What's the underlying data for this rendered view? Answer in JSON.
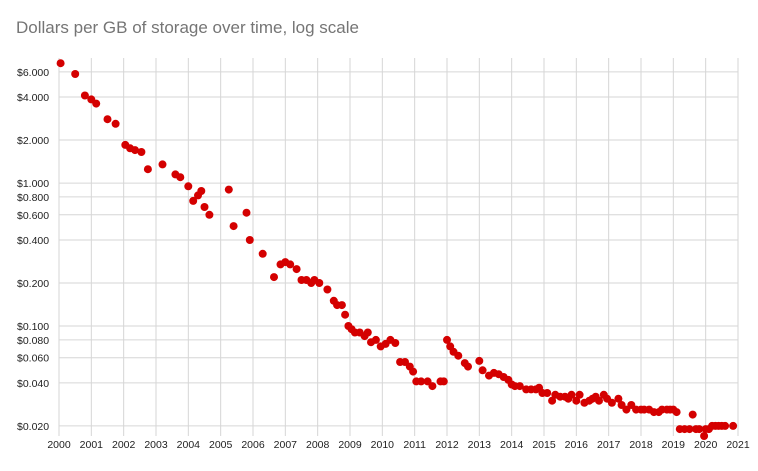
{
  "chart_data": {
    "type": "scatter",
    "title": "Dollars per GB of storage over time, log scale",
    "xlabel": "",
    "ylabel": "",
    "y_scale": "log",
    "xlim": [
      2000,
      2021
    ],
    "ylim": [
      0.017,
      7.5
    ],
    "grid": true,
    "legend": "none",
    "marker_color": "#d40000",
    "x_ticks": [
      "2000",
      "2001",
      "2002",
      "2003",
      "2004",
      "2005",
      "2006",
      "2007",
      "2008",
      "2009",
      "2010",
      "2011",
      "2012",
      "2013",
      "2014",
      "2015",
      "2016",
      "2017",
      "2018",
      "2019",
      "2020",
      "2021"
    ],
    "y_ticks": [
      {
        "value": 6,
        "label": "$6.000"
      },
      {
        "value": 4,
        "label": "$4.000"
      },
      {
        "value": 2,
        "label": "$2.000"
      },
      {
        "value": 1,
        "label": "$1.000"
      },
      {
        "value": 0.8,
        "label": "$0.800"
      },
      {
        "value": 0.6,
        "label": "$0.600"
      },
      {
        "value": 0.4,
        "label": "$0.400"
      },
      {
        "value": 0.2,
        "label": "$0.200"
      },
      {
        "value": 0.1,
        "label": "$0.100"
      },
      {
        "value": 0.08,
        "label": "$0.080"
      },
      {
        "value": 0.06,
        "label": "$0.060"
      },
      {
        "value": 0.04,
        "label": "$0.040"
      },
      {
        "value": 0.02,
        "label": "$0.020"
      }
    ],
    "points": [
      [
        2000.05,
        6.9
      ],
      [
        2000.5,
        5.8
      ],
      [
        2000.8,
        4.1
      ],
      [
        2001.0,
        3.85
      ],
      [
        2001.15,
        3.6
      ],
      [
        2001.5,
        2.8
      ],
      [
        2001.75,
        2.6
      ],
      [
        2002.05,
        1.85
      ],
      [
        2002.2,
        1.75
      ],
      [
        2002.35,
        1.7
      ],
      [
        2002.55,
        1.65
      ],
      [
        2002.75,
        1.25
      ],
      [
        2003.2,
        1.35
      ],
      [
        2003.6,
        1.15
      ],
      [
        2003.75,
        1.1
      ],
      [
        2004.0,
        0.95
      ],
      [
        2004.15,
        0.75
      ],
      [
        2004.3,
        0.82
      ],
      [
        2004.4,
        0.88
      ],
      [
        2004.5,
        0.68
      ],
      [
        2004.65,
        0.6
      ],
      [
        2005.25,
        0.9
      ],
      [
        2005.4,
        0.5
      ],
      [
        2005.8,
        0.62
      ],
      [
        2005.9,
        0.4
      ],
      [
        2006.3,
        0.32
      ],
      [
        2006.65,
        0.22
      ],
      [
        2006.85,
        0.27
      ],
      [
        2007.0,
        0.28
      ],
      [
        2007.15,
        0.27
      ],
      [
        2007.35,
        0.25
      ],
      [
        2007.5,
        0.21
      ],
      [
        2007.65,
        0.21
      ],
      [
        2007.8,
        0.2
      ],
      [
        2007.9,
        0.21
      ],
      [
        2008.05,
        0.2
      ],
      [
        2008.3,
        0.18
      ],
      [
        2008.5,
        0.15
      ],
      [
        2008.6,
        0.14
      ],
      [
        2008.75,
        0.14
      ],
      [
        2008.85,
        0.12
      ],
      [
        2008.95,
        0.1
      ],
      [
        2009.05,
        0.095
      ],
      [
        2009.15,
        0.09
      ],
      [
        2009.3,
        0.09
      ],
      [
        2009.45,
        0.085
      ],
      [
        2009.55,
        0.09
      ],
      [
        2009.65,
        0.077
      ],
      [
        2009.8,
        0.08
      ],
      [
        2009.95,
        0.072
      ],
      [
        2010.1,
        0.075
      ],
      [
        2010.25,
        0.08
      ],
      [
        2010.4,
        0.076
      ],
      [
        2010.55,
        0.056
      ],
      [
        2010.7,
        0.056
      ],
      [
        2010.85,
        0.052
      ],
      [
        2010.95,
        0.048
      ],
      [
        2011.05,
        0.041
      ],
      [
        2011.2,
        0.041
      ],
      [
        2011.4,
        0.041
      ],
      [
        2011.55,
        0.038
      ],
      [
        2011.8,
        0.041
      ],
      [
        2011.9,
        0.041
      ],
      [
        2012.0,
        0.08
      ],
      [
        2012.1,
        0.072
      ],
      [
        2012.2,
        0.066
      ],
      [
        2012.35,
        0.062
      ],
      [
        2012.55,
        0.055
      ],
      [
        2012.65,
        0.052
      ],
      [
        2013.0,
        0.057
      ],
      [
        2013.1,
        0.049
      ],
      [
        2013.3,
        0.045
      ],
      [
        2013.45,
        0.047
      ],
      [
        2013.6,
        0.046
      ],
      [
        2013.75,
        0.044
      ],
      [
        2013.9,
        0.042
      ],
      [
        2014.0,
        0.039
      ],
      [
        2014.1,
        0.038
      ],
      [
        2014.25,
        0.038
      ],
      [
        2014.45,
        0.036
      ],
      [
        2014.6,
        0.036
      ],
      [
        2014.75,
        0.036
      ],
      [
        2014.85,
        0.037
      ],
      [
        2014.95,
        0.034
      ],
      [
        2015.1,
        0.034
      ],
      [
        2015.25,
        0.03
      ],
      [
        2015.35,
        0.033
      ],
      [
        2015.5,
        0.032
      ],
      [
        2015.65,
        0.032
      ],
      [
        2015.75,
        0.031
      ],
      [
        2015.85,
        0.033
      ],
      [
        2016.0,
        0.03
      ],
      [
        2016.1,
        0.033
      ],
      [
        2016.25,
        0.029
      ],
      [
        2016.4,
        0.03
      ],
      [
        2016.5,
        0.031
      ],
      [
        2016.6,
        0.032
      ],
      [
        2016.7,
        0.03
      ],
      [
        2016.85,
        0.033
      ],
      [
        2016.95,
        0.031
      ],
      [
        2017.1,
        0.029
      ],
      [
        2017.3,
        0.031
      ],
      [
        2017.4,
        0.028
      ],
      [
        2017.55,
        0.026
      ],
      [
        2017.7,
        0.028
      ],
      [
        2017.85,
        0.026
      ],
      [
        2018.0,
        0.026
      ],
      [
        2018.1,
        0.026
      ],
      [
        2018.25,
        0.026
      ],
      [
        2018.4,
        0.025
      ],
      [
        2018.55,
        0.025
      ],
      [
        2018.65,
        0.026
      ],
      [
        2018.8,
        0.026
      ],
      [
        2018.9,
        0.026
      ],
      [
        2019.0,
        0.026
      ],
      [
        2019.1,
        0.025
      ],
      [
        2019.2,
        0.019
      ],
      [
        2019.35,
        0.019
      ],
      [
        2019.5,
        0.019
      ],
      [
        2019.6,
        0.024
      ],
      [
        2019.7,
        0.019
      ],
      [
        2019.8,
        0.019
      ],
      [
        2019.95,
        0.017
      ],
      [
        2020.0,
        0.019
      ],
      [
        2020.1,
        0.019
      ],
      [
        2020.2,
        0.02
      ],
      [
        2020.3,
        0.02
      ],
      [
        2020.4,
        0.02
      ],
      [
        2020.5,
        0.02
      ],
      [
        2020.6,
        0.02
      ],
      [
        2020.85,
        0.02
      ]
    ]
  }
}
